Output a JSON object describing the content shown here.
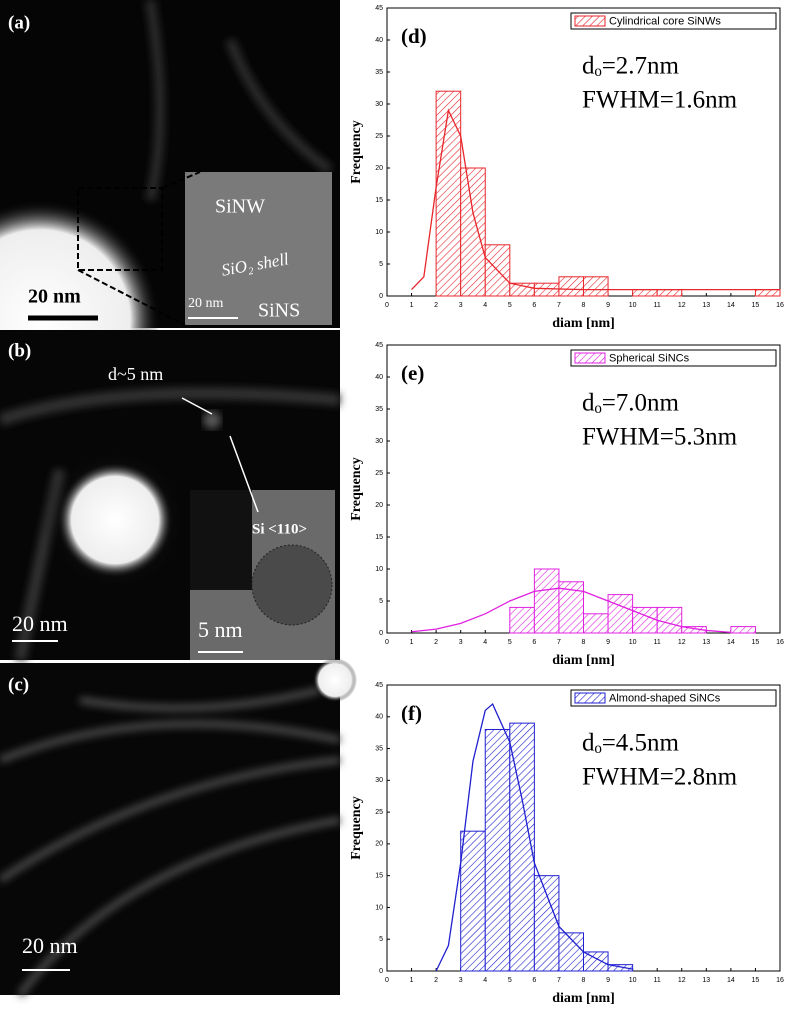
{
  "panels": [
    {
      "label": "(a)",
      "scale": "20 nm",
      "inset_texts": [
        "SiNW",
        "SiO₂ shell",
        "20 nm",
        "SiNS"
      ]
    },
    {
      "label": "(b)",
      "scale": "20 nm",
      "inset_texts": [
        "d~5 nm",
        "Si <110>",
        "5 nm"
      ]
    },
    {
      "label": "(c)",
      "scale": "20 nm",
      "inset_texts": []
    }
  ],
  "chart_data": [
    {
      "type": "histogram",
      "panel": "(d)",
      "legend_label": "Cylindrical core SiNWs",
      "legend": "upper right",
      "color": "#e8262b",
      "annotations": [
        "dₒ=2.7nm",
        "FWHM=1.6nm"
      ],
      "xlabel": "diam [nm]",
      "ylabel": "Frequency",
      "bins": [
        2,
        3,
        4,
        5,
        6,
        7,
        8,
        9,
        10,
        11,
        12,
        13,
        14,
        15,
        16
      ],
      "counts": [
        32,
        20,
        8,
        2,
        2,
        3,
        3,
        0,
        1,
        1,
        0,
        0,
        0,
        1
      ],
      "fit": {
        "x": [
          1,
          1.5,
          2,
          2.5,
          3,
          3.5,
          4,
          5,
          6,
          8,
          16
        ],
        "values": [
          1,
          3,
          17,
          29,
          25,
          13,
          6,
          2,
          1.2,
          1,
          1
        ]
      },
      "xlim": [
        0,
        16
      ],
      "xticks": [
        0,
        1,
        2,
        3,
        4,
        5,
        6,
        7,
        8,
        9,
        10,
        11,
        12,
        13,
        14,
        15,
        16
      ],
      "ylim": [
        0,
        45
      ],
      "yticks": [
        0,
        5,
        10,
        15,
        20,
        25,
        30,
        35,
        40,
        45
      ]
    },
    {
      "type": "histogram",
      "panel": "(e)",
      "legend_label": "Spherical SiNCs",
      "legend": "upper right",
      "color": "#e020e0",
      "annotations": [
        "dₒ=7.0nm",
        "FWHM=5.3nm"
      ],
      "xlabel": "diam [nm]",
      "ylabel": "Frequency",
      "bins": [
        5,
        6,
        7,
        8,
        9,
        10,
        11,
        12,
        13,
        14,
        15
      ],
      "counts": [
        4,
        10,
        8,
        3,
        6,
        4,
        4,
        1,
        0,
        1
      ],
      "fit": {
        "x": [
          1,
          2,
          3,
          4,
          5,
          6,
          7,
          8,
          9,
          10,
          11,
          12,
          13,
          14
        ],
        "values": [
          0.2,
          0.6,
          1.5,
          3,
          5,
          6.5,
          7,
          6.5,
          5,
          3.5,
          2,
          1,
          0.4,
          0.1
        ]
      },
      "xlim": [
        0,
        16
      ],
      "xticks": [
        0,
        1,
        2,
        3,
        4,
        5,
        6,
        7,
        8,
        9,
        10,
        11,
        12,
        13,
        14,
        15,
        16
      ],
      "ylim": [
        0,
        45
      ],
      "yticks": [
        0,
        5,
        10,
        15,
        20,
        25,
        30,
        35,
        40,
        45
      ]
    },
    {
      "type": "histogram",
      "panel": "(f)",
      "legend_label": "Almond-shaped SiNCs",
      "legend": "upper right",
      "color": "#2020d0",
      "annotations": [
        "dₒ=4.5nm",
        "FWHM=2.8nm"
      ],
      "xlabel": "diam [nm]",
      "ylabel": "Frequency",
      "bins": [
        3,
        4,
        5,
        6,
        7,
        8,
        9,
        10
      ],
      "counts": [
        22,
        38,
        39,
        15,
        6,
        3,
        1
      ],
      "fit": {
        "x": [
          2,
          2.5,
          3,
          3.5,
          4,
          4.3,
          5,
          5.5,
          6,
          7,
          8,
          9,
          10
        ],
        "values": [
          0,
          4,
          17,
          33,
          41,
          42,
          36,
          27,
          17,
          7,
          3,
          1,
          0.3
        ]
      },
      "xlim": [
        0,
        16
      ],
      "xticks": [
        0,
        1,
        2,
        3,
        4,
        5,
        6,
        7,
        8,
        9,
        10,
        11,
        12,
        13,
        14,
        15,
        16
      ],
      "ylim": [
        0,
        45
      ],
      "yticks": [
        0,
        5,
        10,
        15,
        20,
        25,
        30,
        35,
        40,
        45
      ]
    }
  ]
}
